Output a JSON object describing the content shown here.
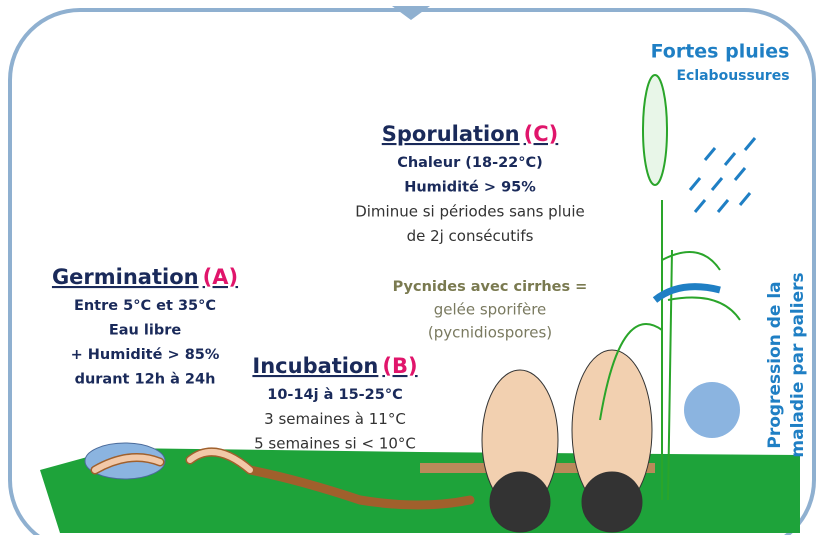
{
  "rain": {
    "title": "Fortes pluies",
    "subtitle": "Eclaboussures"
  },
  "stages": [
    {
      "name": "Germination",
      "letter": "(A)",
      "strong": [
        "Entre 5°C et 35°C",
        "Eau libre",
        "+ Humidité > 85%",
        "durant 12h à 24h"
      ],
      "notes": []
    },
    {
      "name": "Incubation",
      "letter": "(B)",
      "strong": [
        "10-14j à 15-25°C"
      ],
      "notes": [
        "3 semaines à 11°C",
        "5 semaines si < 10°C"
      ]
    },
    {
      "name": "Sporulation",
      "letter": "(C)",
      "strong": [
        "Chaleur (18-22°C)",
        "Humidité > 95%"
      ],
      "notes": [
        "Diminue si périodes sans pluie",
        "de 2j consécutifs"
      ]
    }
  ],
  "pycnides": {
    "title": "Pycnides avec cirrhes =",
    "lines": [
      "gelée sporifère",
      "(pycnidiospores)"
    ]
  },
  "progression": {
    "lines": [
      "Progression de la",
      "maladie par paliers"
    ]
  }
}
